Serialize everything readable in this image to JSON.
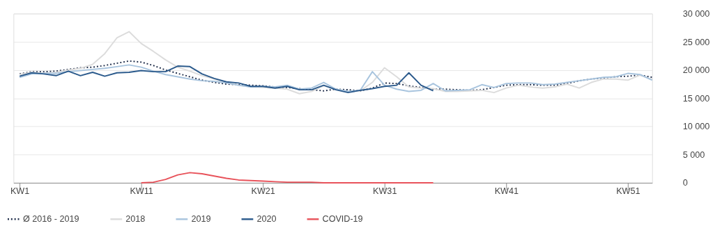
{
  "chart_data": {
    "type": "line",
    "categories": [
      "KW1",
      null,
      null,
      null,
      null,
      null,
      null,
      null,
      null,
      null,
      "KW11",
      null,
      null,
      null,
      null,
      null,
      null,
      null,
      null,
      null,
      "KW21",
      null,
      null,
      null,
      null,
      null,
      null,
      null,
      null,
      null,
      "KW31",
      null,
      null,
      null,
      null,
      null,
      null,
      null,
      null,
      null,
      "KW41",
      null,
      null,
      null,
      null,
      null,
      null,
      null,
      null,
      null,
      "KW51",
      null,
      null
    ],
    "series": [
      {
        "name": "Ø 2016 - 2019",
        "color": "#1f2d4a",
        "line_style": "dotted",
        "values": [
          19300,
          19700,
          19700,
          19800,
          20100,
          20400,
          20500,
          20800,
          21200,
          21600,
          21400,
          20800,
          20000,
          19400,
          18800,
          18200,
          17800,
          17500,
          17400,
          17300,
          17200,
          17000,
          16900,
          16700,
          16500,
          16300,
          16600,
          16500,
          16300,
          16800,
          17700,
          17600,
          17200,
          16900,
          16600,
          16600,
          16500,
          16400,
          16500,
          16900,
          17300,
          17400,
          17400,
          17300,
          17300,
          17600,
          18100,
          18400,
          18600,
          18800,
          18900,
          19100,
          18700
        ]
      },
      {
        "name": "2018",
        "color": "#dcdcdc",
        "line_style": "solid",
        "values": [
          19200,
          19600,
          19400,
          19600,
          20000,
          20300,
          21000,
          22900,
          25700,
          26800,
          24700,
          23300,
          21800,
          20500,
          19800,
          19000,
          18400,
          17800,
          17300,
          17000,
          16900,
          16800,
          16600,
          15800,
          16200,
          17200,
          16600,
          16200,
          16300,
          17800,
          20400,
          18800,
          17000,
          16800,
          16700,
          16200,
          16200,
          16300,
          16400,
          16000,
          16800,
          17300,
          17000,
          16800,
          17000,
          17500,
          16800,
          17800,
          18400,
          18400,
          18200,
          19100,
          18300
        ]
      },
      {
        "name": "2019",
        "color": "#a8c4de",
        "line_style": "solid",
        "values": [
          18700,
          19300,
          19400,
          19400,
          19700,
          19900,
          20100,
          20300,
          20600,
          20900,
          20500,
          19800,
          19200,
          18800,
          18400,
          18100,
          18000,
          17700,
          17300,
          17000,
          17100,
          17000,
          17300,
          16600,
          16800,
          17800,
          16600,
          16200,
          16400,
          19700,
          17300,
          16600,
          16200,
          16400,
          17600,
          16300,
          16400,
          16500,
          17400,
          16900,
          17600,
          17700,
          17700,
          17400,
          17500,
          17800,
          18100,
          18400,
          18700,
          18800,
          19400,
          19200,
          18200
        ]
      },
      {
        "name": "2020",
        "color": "#2b5a8c",
        "line_style": "solid",
        "values": [
          18900,
          19500,
          19300,
          19000,
          19800,
          19000,
          19600,
          18900,
          19500,
          19600,
          19900,
          19700,
          19700,
          20700,
          20600,
          19300,
          18500,
          17900,
          17700,
          17100,
          17100,
          16800,
          17100,
          16500,
          16500,
          17300,
          16500,
          16000,
          16400,
          16700,
          17100,
          17300,
          19500,
          17300,
          16300,
          null,
          null,
          null,
          null,
          null,
          null,
          null,
          null,
          null,
          null,
          null,
          null,
          null,
          null,
          null,
          null,
          null,
          null
        ]
      },
      {
        "name": "COVID-19",
        "color": "#e8525a",
        "line_style": "solid",
        "values": [
          null,
          null,
          null,
          null,
          null,
          null,
          null,
          null,
          null,
          null,
          0,
          100,
          600,
          1400,
          1800,
          1600,
          1200,
          800,
          500,
          400,
          300,
          200,
          100,
          100,
          100,
          0,
          0,
          0,
          0,
          0,
          0,
          0,
          0,
          0,
          0,
          null,
          null,
          null,
          null,
          null,
          null,
          null,
          null,
          null,
          null,
          null,
          null,
          null,
          null,
          null,
          null,
          null,
          null
        ]
      }
    ],
    "ylim": [
      0,
      30000
    ],
    "yticks": [
      0,
      {
        "value": 5000,
        "label": "5 000"
      },
      {
        "value": 10000,
        "label": "10 000"
      },
      {
        "value": 15000,
        "label": "15 000"
      },
      {
        "value": 20000,
        "label": "20 000"
      },
      {
        "value": 25000,
        "label": "25 000"
      },
      {
        "value": 30000,
        "label": "30 000"
      }
    ],
    "grid": "y",
    "legend": "bottom left"
  }
}
